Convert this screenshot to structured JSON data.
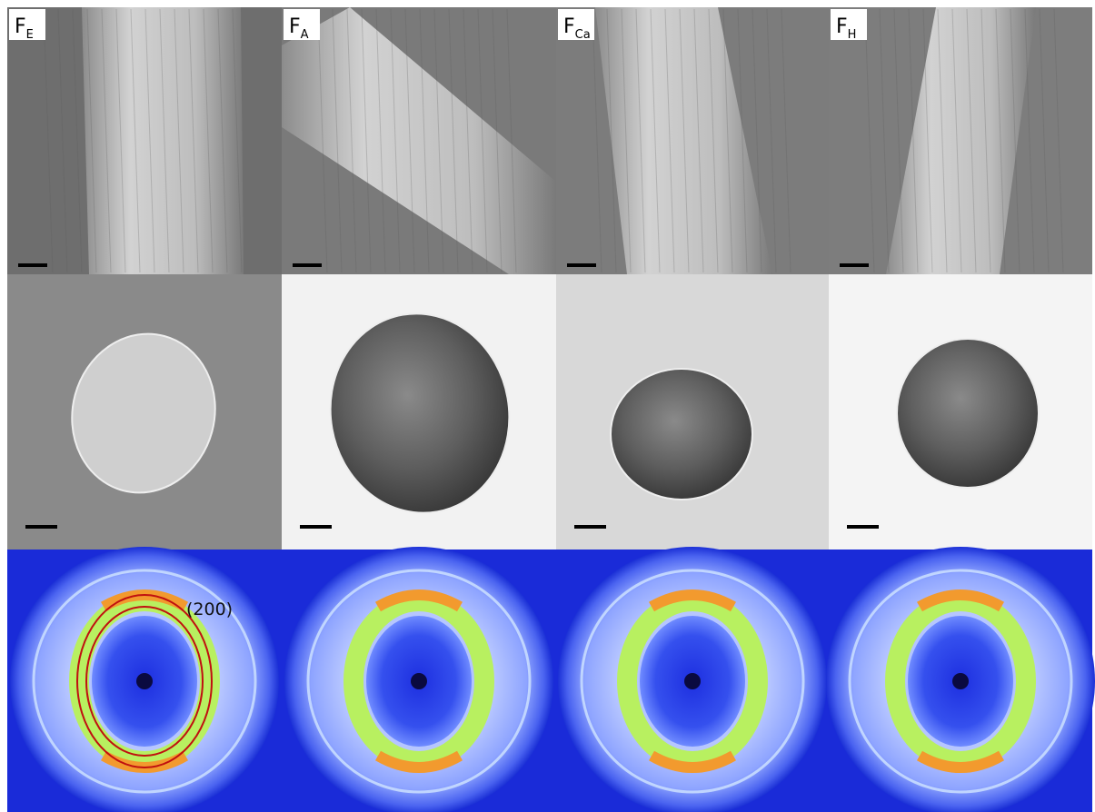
{
  "panels": [
    {
      "label": {
        "main": "F",
        "sub": "E"
      }
    },
    {
      "label": {
        "main": "F",
        "sub": "A"
      }
    },
    {
      "label": {
        "main": "F",
        "sub": "Ca"
      }
    },
    {
      "label": {
        "main": "F",
        "sub": "H"
      }
    }
  ],
  "annotation": "(200)"
}
